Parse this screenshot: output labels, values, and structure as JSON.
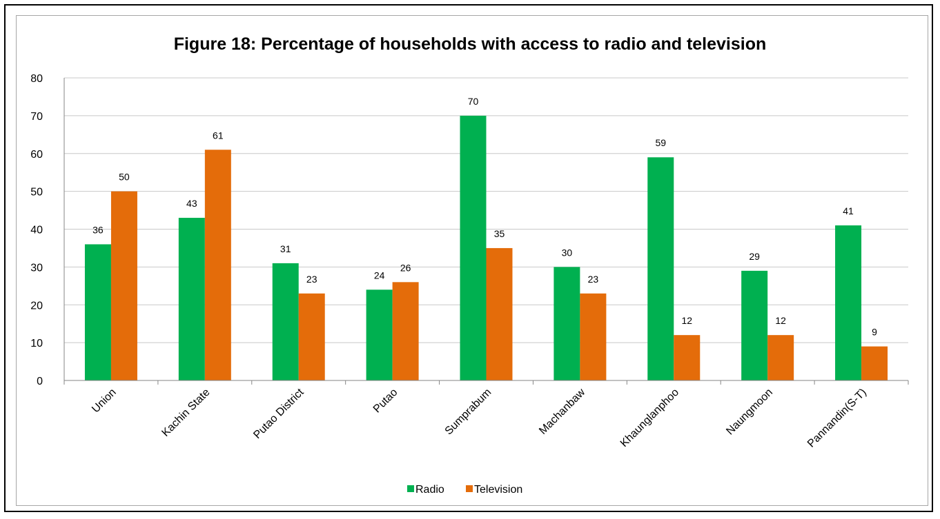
{
  "chart_data": {
    "type": "bar",
    "title": "Figure 18: Percentage of households with access to radio and television",
    "xlabel": "",
    "ylabel": "",
    "ylim": [
      0,
      80
    ],
    "yticks": [
      0,
      10,
      20,
      30,
      40,
      50,
      60,
      70,
      80
    ],
    "grid": true,
    "legend_position": "bottom",
    "categories": [
      "Union",
      "Kachin State",
      "Putao District",
      "Putao",
      "Sumprabum",
      "Machanbaw",
      "Khaunglanphoo",
      "Naungmoon",
      "Pannandin(S-T)"
    ],
    "series": [
      {
        "name": "Radio",
        "color": "#00b050",
        "values": [
          36,
          43,
          31,
          24,
          70,
          30,
          59,
          29,
          41
        ],
        "labels": [
          "36",
          "43",
          "31",
          "24",
          "70",
          "30",
          "59",
          "29",
          "41"
        ]
      },
      {
        "name": "Television",
        "color": "#e46c0a",
        "values": [
          50,
          61,
          23,
          26,
          35,
          23,
          12,
          12,
          9
        ],
        "labels": [
          "50",
          "61",
          "23",
          "26",
          "35",
          "23",
          "12",
          "12",
          "9"
        ]
      }
    ]
  }
}
